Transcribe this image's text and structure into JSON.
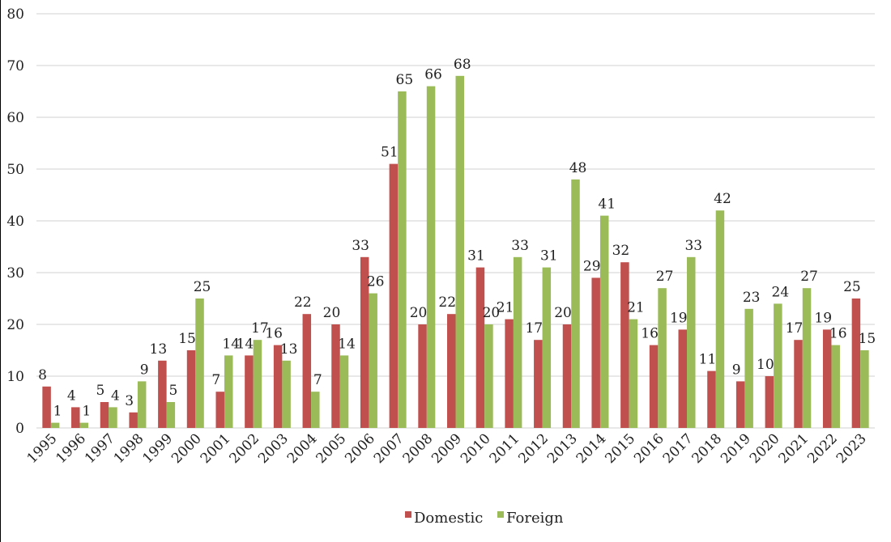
{
  "chart_data": {
    "type": "bar",
    "title": "",
    "xlabel": "",
    "ylabel": "",
    "ylim": [
      0,
      80
    ],
    "yticks": [
      0,
      10,
      20,
      30,
      40,
      50,
      60,
      70,
      80
    ],
    "grid": true,
    "legend_position": "bottom",
    "categories": [
      "1995",
      "1996",
      "1997",
      "1998",
      "1999",
      "2000",
      "2001",
      "2002",
      "2003",
      "2004",
      "2005",
      "2006",
      "2007",
      "2008",
      "2009",
      "2010",
      "2011",
      "2012",
      "2013",
      "2014",
      "2015",
      "2016",
      "2017",
      "2018",
      "2019",
      "2020",
      "2021",
      "2022",
      "2023"
    ],
    "series": [
      {
        "name": "Domestic",
        "color": "#C0504D",
        "values": [
          8,
          4,
          5,
          3,
          13,
          15,
          7,
          14,
          16,
          22,
          20,
          33,
          51,
          20,
          22,
          31,
          21,
          17,
          20,
          29,
          32,
          16,
          19,
          11,
          9,
          10,
          17,
          19,
          25
        ]
      },
      {
        "name": "Foreign",
        "color": "#9BBB59",
        "values": [
          1,
          1,
          4,
          9,
          5,
          25,
          14,
          17,
          13,
          7,
          14,
          26,
          65,
          66,
          68,
          20,
          33,
          31,
          48,
          41,
          21,
          27,
          33,
          42,
          23,
          24,
          27,
          16,
          15
        ]
      }
    ]
  }
}
